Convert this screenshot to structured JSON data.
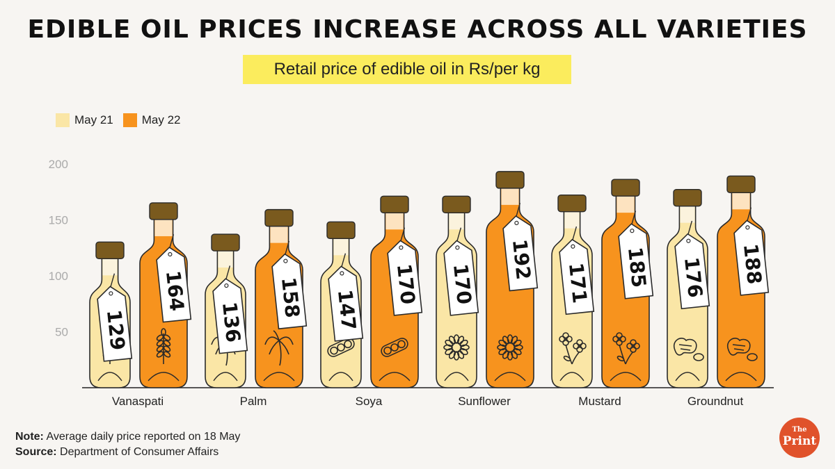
{
  "header": {
    "title": "EDIBLE OIL PRICES INCREASE ACROSS ALL VARIETIES",
    "subtitle": "Retail price of edible oil in Rs/per kg"
  },
  "legend": [
    {
      "label": "May 21",
      "color": "#fae6a6"
    },
    {
      "label": "May 22",
      "color": "#f7931e"
    }
  ],
  "chart_data": {
    "type": "bar",
    "title": "EDIBLE OIL PRICES INCREASE ACROSS ALL VARIETIES",
    "subtitle": "Retail price of edible oil in Rs/per kg",
    "xlabel": "",
    "ylabel": "",
    "categories": [
      "Vanaspati",
      "Palm",
      "Soya",
      "Sunflower",
      "Mustard",
      "Groundnut"
    ],
    "icons": [
      "wheat-icon",
      "palm-tree-icon",
      "soybean-icon",
      "sunflower-icon",
      "mustard-flower-icon",
      "peanut-icon"
    ],
    "series": [
      {
        "name": "May 21",
        "values": [
          129,
          136,
          147,
          170,
          171,
          176
        ],
        "color": "#fae6a6"
      },
      {
        "name": "May 22",
        "values": [
          164,
          158,
          170,
          192,
          185,
          188
        ],
        "color": "#f7931e"
      }
    ],
    "yticks": [
      50,
      100,
      150,
      200
    ],
    "ylim": [
      0,
      200
    ],
    "grid": false,
    "legend_position": "top-left"
  },
  "footer": {
    "note_label": "Note:",
    "note_text": "Average daily price reported on 18 May",
    "source_label": "Source:",
    "source_text": "Department of Consumer Affairs",
    "logo_top": "The",
    "logo_bottom": "Print",
    "logo_color": "#e0522b"
  }
}
